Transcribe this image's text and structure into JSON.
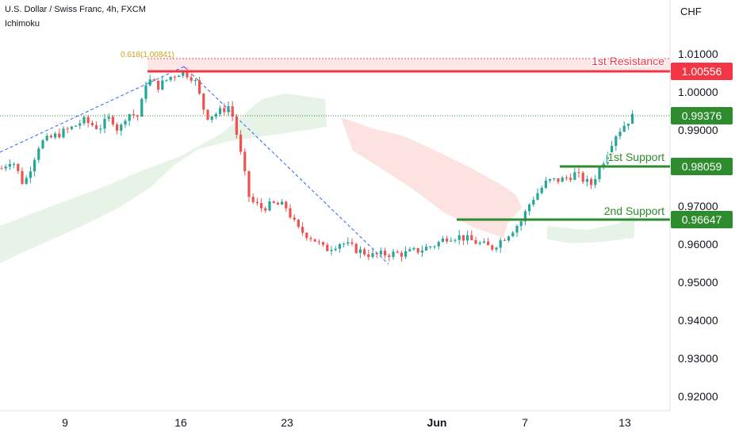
{
  "header": {
    "symbol_title": "U.S. Dollar / Swiss Franc, 4h, FXCM",
    "indicator": "Ichimoku",
    "currency": "CHF"
  },
  "colors": {
    "bull": "#26a69a",
    "bear": "#ef5350",
    "resistance": "#f23645",
    "support": "#2e8b2e",
    "cloud_bull": "#e6f3e6",
    "cloud_bear": "#fde2e2",
    "fib": "#d4a017",
    "trend_line": "#2962ff",
    "last_price": "#2e8b2e"
  },
  "chart_data": {
    "type": "candlestick",
    "title": "U.S. Dollar / Swiss Franc, 4h, FXCM",
    "indicator": "Ichimoku",
    "ylim": [
      0.9165,
      1.0152
    ],
    "y_ticks": [
      "1.01000",
      "1.00000",
      "0.99000",
      "0.97000",
      "0.96000",
      "0.95000",
      "0.94000",
      "0.93000",
      "0.92000"
    ],
    "x_ticks": [
      "9",
      "16",
      "23",
      "Jun",
      "7",
      "13"
    ],
    "fib_label": "0.618(1.00841)",
    "levels": [
      {
        "name": "1st Resistance",
        "price": "1.00556"
      },
      {
        "name": "1st Support",
        "price": "0.98059"
      },
      {
        "name": "2nd Support",
        "price": "0.96647"
      }
    ],
    "last_price": "0.99376",
    "price_path": [
      [
        0,
        0.9795
      ],
      [
        15,
        0.9825
      ],
      [
        30,
        0.9755
      ],
      [
        50,
        0.9865
      ],
      [
        70,
        0.9885
      ],
      [
        90,
        0.9905
      ],
      [
        105,
        0.9925
      ],
      [
        125,
        0.9905
      ],
      [
        140,
        0.9935
      ],
      [
        150,
        0.9895
      ],
      [
        160,
        0.9945
      ],
      [
        175,
        0.9935
      ],
      [
        185,
        1.0035
      ],
      [
        200,
        1.0015
      ],
      [
        215,
        1.004
      ],
      [
        230,
        1.0055
      ],
      [
        245,
        1.0035
      ],
      [
        260,
        0.9935
      ],
      [
        275,
        0.9945
      ],
      [
        290,
        0.9965
      ],
      [
        300,
        0.9875
      ],
      [
        315,
        0.9715
      ],
      [
        330,
        0.9695
      ],
      [
        345,
        0.9705
      ],
      [
        360,
        0.97
      ],
      [
        375,
        0.964
      ],
      [
        395,
        0.9615
      ],
      [
        410,
        0.9585
      ],
      [
        430,
        0.9605
      ],
      [
        450,
        0.9585
      ],
      [
        470,
        0.957
      ],
      [
        490,
        0.9575
      ],
      [
        510,
        0.9575
      ],
      [
        530,
        0.9585
      ],
      [
        550,
        0.96
      ],
      [
        565,
        0.962
      ],
      [
        580,
        0.962
      ],
      [
        600,
        0.9605
      ],
      [
        620,
        0.959
      ],
      [
        640,
        0.9625
      ],
      [
        657,
        0.966
      ],
      [
        670,
        0.9715
      ],
      [
        690,
        0.9765
      ],
      [
        710,
        0.977
      ],
      [
        725,
        0.9785
      ],
      [
        745,
        0.9755
      ],
      [
        760,
        0.9815
      ],
      [
        775,
        0.9885
      ],
      [
        790,
        0.992
      ],
      [
        798,
        0.9935
      ]
    ]
  }
}
